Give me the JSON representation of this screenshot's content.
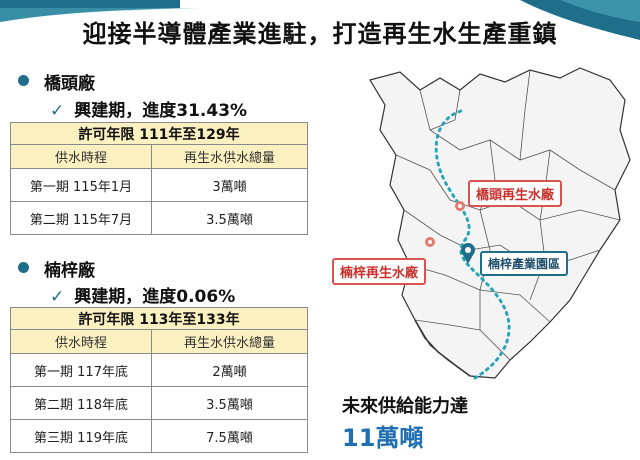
{
  "title": "迎接半導體產業進駐，打造再生水生產重鎮",
  "colors": {
    "accent": "#1f6f8b",
    "table_header": "#fbf0c0",
    "label_red": "#d9534f",
    "capacity_blue": "#1f6fb2"
  },
  "plants": [
    {
      "name": "橋頭廠",
      "status": "興建期，進度31.43%",
      "permit": "許可年限 111年至129年",
      "col_schedule": "供水時程",
      "col_volume": "再生水供水總量",
      "rows": [
        {
          "phase": "第一期 115年1月",
          "volume": "3萬噸"
        },
        {
          "phase": "第二期 115年7月",
          "volume": "3.5萬噸"
        }
      ]
    },
    {
      "name": "楠梓廠",
      "status": "興建期，進度0.06%",
      "permit": "許可年限 113年至133年",
      "col_schedule": "供水時程",
      "col_volume": "再生水供水總量",
      "rows": [
        {
          "phase": "第一期 117年底",
          "volume": "2萬噸"
        },
        {
          "phase": "第二期 118年底",
          "volume": "3.5萬噸"
        },
        {
          "phase": "第三期 119年底",
          "volume": "7.5萬噸"
        }
      ]
    }
  ],
  "map": {
    "qiaotou_label": "橋頭再生水廠",
    "nanzi_label": "楠梓再生水廠",
    "park_label": "楠梓產業園區"
  },
  "future": {
    "line1": "未來供給能力達",
    "line2": "11萬噸"
  }
}
